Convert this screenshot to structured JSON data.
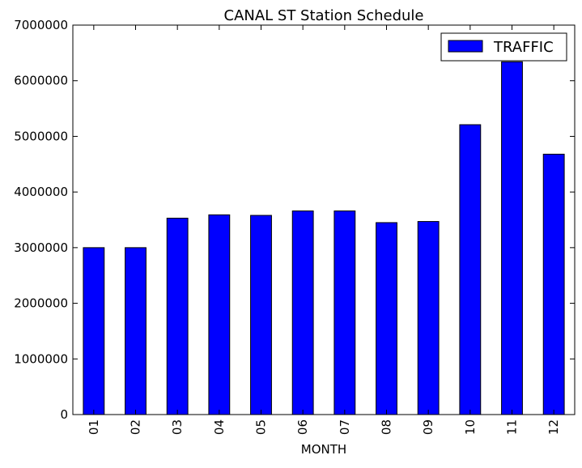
{
  "chart_data": {
    "type": "bar",
    "title": "CANAL ST Station Schedule",
    "xlabel": "MONTH",
    "ylabel": "",
    "categories": [
      "01",
      "02",
      "03",
      "04",
      "05",
      "06",
      "07",
      "08",
      "09",
      "10",
      "11",
      "12"
    ],
    "series": [
      {
        "name": "TRAFFIC",
        "values": [
          3000000,
          3000000,
          3530000,
          3590000,
          3580000,
          3660000,
          3660000,
          3450000,
          3470000,
          5210000,
          6340000,
          4680000
        ]
      }
    ],
    "ylim": [
      0,
      7000000
    ],
    "yticks": [
      0,
      1000000,
      2000000,
      3000000,
      4000000,
      5000000,
      6000000,
      7000000
    ],
    "ytick_labels": [
      "0",
      "1000000",
      "2000000",
      "3000000",
      "4000000",
      "5000000",
      "6000000",
      "7000000"
    ],
    "grid": false,
    "legend_position": "top-right",
    "colors": {
      "bar_fill": "#0000ff",
      "bar_edge": "#000000",
      "axes": "#000000",
      "background": "#ffffff"
    }
  }
}
